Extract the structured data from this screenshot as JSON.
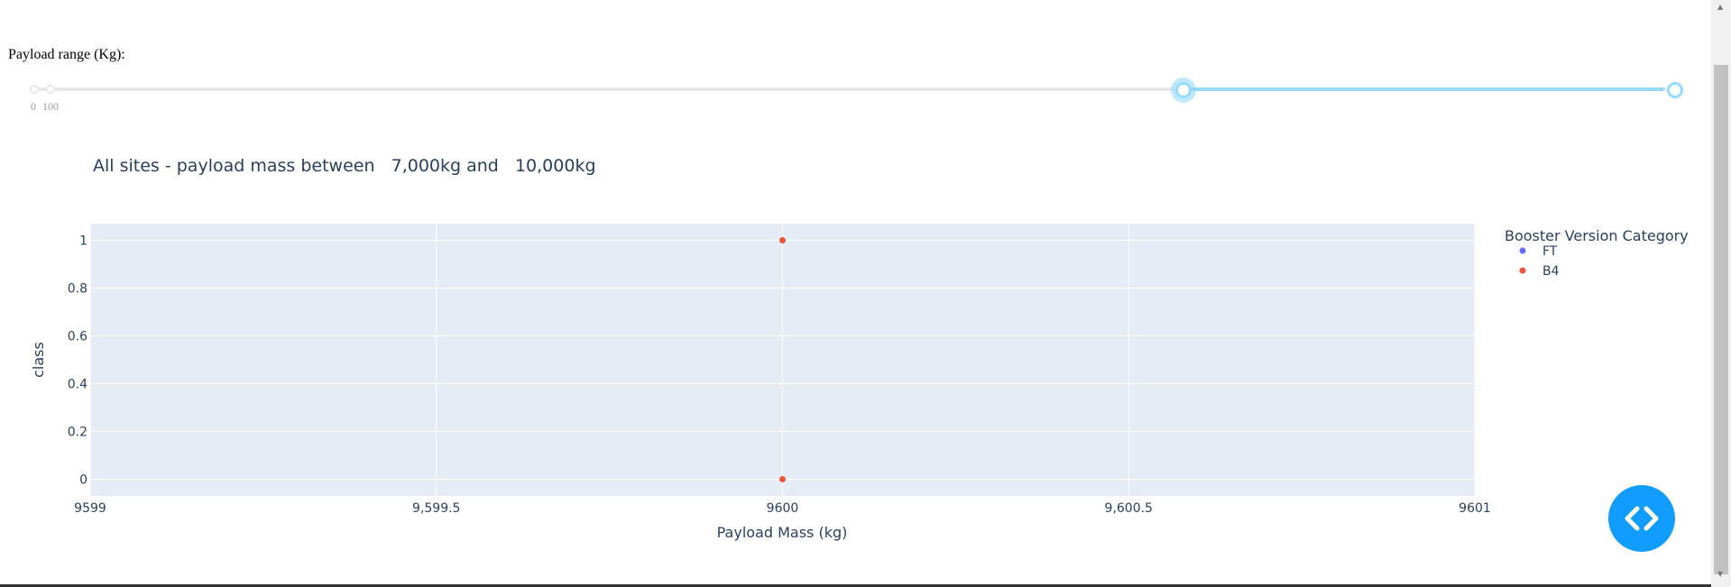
{
  "slider": {
    "label": "Payload range (Kg):",
    "marks": [
      "0",
      "100"
    ],
    "value_low": 7000,
    "value_high": 10000,
    "min": 0,
    "max": 10000
  },
  "chart_data": {
    "type": "scatter",
    "title": "All sites - payload mass between   7,000kg and   10,000kg",
    "xlabel": "Payload Mass (kg)",
    "ylabel": "class",
    "xlim": [
      9599,
      9601
    ],
    "ylim": [
      -0.07,
      1.07
    ],
    "xticks": [
      9599,
      9599.5,
      9600,
      9600.5,
      9601
    ],
    "xtick_labels": [
      "9599",
      "9,599.5",
      "9600",
      "9,600.5",
      "9601"
    ],
    "yticks": [
      0,
      0.2,
      0.4,
      0.6,
      0.8,
      1
    ],
    "ytick_labels": [
      "0",
      "0.2",
      "0.4",
      "0.6",
      "0.8",
      "1"
    ],
    "grid": true,
    "legend": {
      "title": "Booster Version Category",
      "placement": "right"
    },
    "series": [
      {
        "name": "FT",
        "color": "#636efa",
        "points": []
      },
      {
        "name": "B4",
        "color": "#ef553b",
        "points": [
          {
            "x": 9600,
            "y": 1
          },
          {
            "x": 9600,
            "y": 0
          }
        ]
      }
    ],
    "plot_bg": "#e5ecf6"
  },
  "ui": {
    "code_button_icon": "code-icon",
    "accent": "#119dff"
  }
}
